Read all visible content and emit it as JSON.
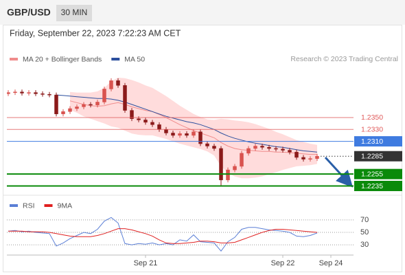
{
  "header": {
    "symbol": "GBP/USD",
    "interval": "30 MIN",
    "timestamp": "Friday, September 22, 2023 7:22:23 AM CET",
    "credit": "Research © 2023 Trading Central"
  },
  "chart_data": [
    {
      "type": "candlestick",
      "categories": [
        null,
        null,
        null,
        null,
        null,
        null,
        null,
        null,
        null,
        null,
        null,
        null,
        null,
        null,
        null,
        null,
        null,
        null,
        null,
        null,
        "Sep 21",
        null,
        null,
        null,
        null,
        null,
        null,
        null,
        null,
        null,
        null,
        null,
        null,
        null,
        null,
        null,
        null,
        null,
        null,
        null,
        "Sep 22",
        null,
        null,
        null,
        null,
        null,
        null,
        "Sep 24"
      ],
      "open": [
        1.239,
        1.2392,
        1.2393,
        1.2391,
        1.2392,
        1.239,
        1.2389,
        1.2388,
        1.2356,
        1.236,
        1.2365,
        1.2368,
        1.2372,
        1.2371,
        1.2376,
        1.2398,
        1.2412,
        1.2404,
        1.2362,
        1.2348,
        1.2346,
        1.2342,
        1.2338,
        1.233,
        1.2324,
        1.232,
        1.2323,
        1.232,
        1.2326,
        1.2306,
        1.2302,
        1.2298,
        1.2245,
        1.2262,
        1.2268,
        1.229,
        1.2298,
        1.2302,
        1.23,
        1.2298,
        1.2297,
        1.2295,
        1.2292,
        1.2283,
        1.228,
        1.2281,
        null,
        null
      ],
      "high": [
        1.2396,
        1.2397,
        1.2397,
        1.2396,
        1.2396,
        1.2394,
        1.2393,
        1.2392,
        1.2364,
        1.2369,
        1.2372,
        1.2376,
        1.2376,
        1.238,
        1.2402,
        1.2416,
        1.2416,
        1.2408,
        1.2366,
        1.2352,
        1.235,
        1.2346,
        1.2342,
        1.2334,
        1.2328,
        1.2327,
        1.2327,
        1.233,
        1.233,
        1.231,
        1.2306,
        1.2302,
        1.2266,
        1.2272,
        1.2294,
        1.2302,
        1.2306,
        1.2306,
        1.2304,
        1.2302,
        1.2301,
        1.2299,
        1.2296,
        1.2287,
        1.2285,
        1.2289,
        null,
        null
      ],
      "low": [
        1.2386,
        1.2388,
        1.2387,
        1.2387,
        1.2386,
        1.2385,
        1.2384,
        1.2352,
        1.2352,
        1.2356,
        1.2361,
        1.2364,
        1.2367,
        1.2367,
        1.2372,
        1.2394,
        1.24,
        1.2358,
        1.2344,
        1.2342,
        1.2338,
        1.2334,
        1.2326,
        1.232,
        1.2316,
        1.2316,
        1.2316,
        1.2316,
        1.2302,
        1.2298,
        1.2294,
        1.2235,
        1.2241,
        1.2258,
        1.2264,
        1.2286,
        1.2294,
        1.2296,
        1.2294,
        1.2293,
        1.2291,
        1.2288,
        1.2279,
        1.2276,
        1.2276,
        1.2277,
        null,
        null
      ],
      "close": [
        1.2392,
        1.2393,
        1.2391,
        1.2392,
        1.239,
        1.2389,
        1.2388,
        1.2356,
        1.236,
        1.2365,
        1.2368,
        1.2372,
        1.2371,
        1.2376,
        1.2398,
        1.2412,
        1.2404,
        1.2362,
        1.2348,
        1.2346,
        1.2342,
        1.2338,
        1.233,
        1.2324,
        1.232,
        1.2323,
        1.232,
        1.2326,
        1.2306,
        1.2302,
        1.2298,
        1.2245,
        1.2262,
        1.2268,
        1.229,
        1.2298,
        1.2302,
        1.23,
        1.2298,
        1.2297,
        1.2295,
        1.2292,
        1.2283,
        1.228,
        1.2281,
        1.2285,
        null,
        null
      ],
      "up_color": "#d9534f",
      "down_color": "#8b1a1a",
      "ylim": [
        1.2224,
        1.2432
      ],
      "overlays": [
        {
          "name": "MA 20 + Bollinger Bands",
          "color": "#f08c8c",
          "band_color": "#ffdcdc",
          "values": [
            null,
            null,
            null,
            null,
            null,
            null,
            null,
            null,
            null,
            1.2378,
            1.2375,
            1.2372,
            1.237,
            1.2369,
            1.237,
            1.2373,
            1.2375,
            1.2372,
            1.2368,
            1.2365,
            1.2362,
            1.236,
            1.2355,
            1.235,
            1.2344,
            1.2338,
            1.2333,
            1.2328,
            1.2324,
            1.232,
            1.2316,
            1.2308,
            1.2302,
            1.2298,
            1.2296,
            1.2295,
            1.2294,
            1.2293,
            1.2293,
            1.2292,
            1.2292,
            1.2291,
            1.229,
            1.2289,
            1.2288,
            1.2288,
            null,
            null
          ],
          "upper": [
            null,
            null,
            null,
            null,
            null,
            null,
            null,
            null,
            null,
            1.2393,
            1.2392,
            1.2392,
            1.2392,
            1.2394,
            1.24,
            1.2411,
            1.2417,
            1.2416,
            1.2413,
            1.2409,
            1.2404,
            1.24,
            1.2393,
            1.2386,
            1.2378,
            1.237,
            1.2363,
            1.2356,
            1.2351,
            1.2347,
            1.2346,
            1.2348,
            1.2347,
            1.2345,
            1.2344,
            1.2342,
            1.2339,
            1.2335,
            1.2331,
            1.2326,
            1.2322,
            1.2317,
            1.2312,
            1.2309,
            1.2306,
            1.2304,
            null,
            null
          ],
          "lower": [
            null,
            null,
            null,
            null,
            null,
            null,
            null,
            null,
            null,
            1.2363,
            1.2358,
            1.2352,
            1.2348,
            1.2344,
            1.234,
            1.2335,
            1.2333,
            1.2328,
            1.2323,
            1.2321,
            1.232,
            1.232,
            1.2317,
            1.2314,
            1.231,
            1.2306,
            1.2303,
            1.23,
            1.2297,
            1.2293,
            1.2286,
            1.2268,
            1.2257,
            1.2251,
            1.2248,
            1.2248,
            1.2249,
            1.2251,
            1.2255,
            1.2258,
            1.2262,
            1.2265,
            1.2268,
            1.2269,
            1.227,
            1.2272,
            null,
            null
          ]
        },
        {
          "name": "MA 50",
          "color": "#2c4f9e",
          "values": [
            null,
            null,
            null,
            null,
            null,
            null,
            null,
            1.2388,
            1.2387,
            1.2386,
            1.2385,
            1.2384,
            1.2383,
            1.2382,
            1.2382,
            1.2381,
            1.2379,
            1.2376,
            1.2372,
            1.2368,
            1.2364,
            1.236,
            1.2356,
            1.2352,
            1.2349,
            1.2346,
            1.2343,
            1.2341,
            1.2338,
            1.2334,
            1.233,
            1.2324,
            1.2319,
            1.2315,
            1.2312,
            1.2309,
            1.2307,
            1.2305,
            1.2303,
            1.2301,
            1.23,
            1.2298,
            1.2296,
            1.2294,
            1.2293,
            1.2292,
            null,
            null
          ]
        }
      ],
      "levels": [
        {
          "value": 1.235,
          "label": "1.2350",
          "color": "#e05a5a",
          "style": "resistance"
        },
        {
          "value": 1.233,
          "label": "1.2330",
          "color": "#e05a5a",
          "style": "resistance"
        },
        {
          "value": 1.231,
          "label": "1.2310",
          "color": "#3f7be0",
          "style": "pivot"
        },
        {
          "value": 1.2285,
          "label": "1.2285",
          "color": "#333333",
          "style": "current"
        },
        {
          "value": 1.2255,
          "label": "1.2255",
          "color": "#0a8a0a",
          "style": "support"
        },
        {
          "value": 1.2235,
          "label": "1.2235",
          "color": "#0a8a0a",
          "style": "support"
        }
      ]
    },
    {
      "type": "line",
      "series": [
        {
          "name": "RSI",
          "color": "#5b7fd6",
          "values": [
            52,
            53,
            51,
            52,
            50,
            49,
            48,
            28,
            33,
            40,
            45,
            50,
            48,
            55,
            68,
            74,
            65,
            32,
            30,
            32,
            31,
            33,
            30,
            32,
            30,
            38,
            36,
            46,
            35,
            34,
            33,
            20,
            35,
            42,
            55,
            58,
            58,
            56,
            54,
            53,
            52,
            50,
            44,
            43,
            45,
            49,
            null,
            null
          ]
        },
        {
          "name": "9MA",
          "color": "#e02020",
          "values": [
            52,
            52,
            52,
            51,
            51,
            51,
            50,
            48,
            46,
            44,
            43,
            43,
            43,
            45,
            48,
            52,
            56,
            56,
            54,
            51,
            48,
            44,
            38,
            33,
            32,
            32,
            33,
            34,
            36,
            36,
            35,
            33,
            33,
            34,
            38,
            42,
            46,
            50,
            53,
            55,
            55,
            54,
            53,
            52,
            51,
            50,
            null,
            null
          ]
        }
      ],
      "ylim": [
        18,
        82
      ],
      "yticks": [
        70,
        50,
        30
      ],
      "grid": true
    }
  ]
}
